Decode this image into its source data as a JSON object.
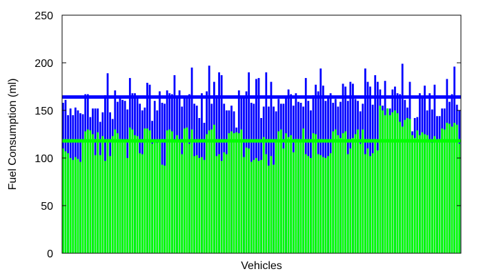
{
  "chart_data": {
    "type": "bar",
    "xlabel": "Vehicles",
    "ylabel": "Fuel Consumption (ml)",
    "ylim": [
      0,
      250
    ],
    "yticks": [
      0,
      50,
      100,
      150,
      200,
      250
    ],
    "grid": false,
    "legend": "none",
    "reference_lines": [
      {
        "value": 164,
        "color": "#0000ff"
      },
      {
        "value": 118,
        "color": "#00ff00"
      }
    ],
    "series": [
      {
        "color": "#0000ff",
        "values": [
          158,
          161,
          145,
          152,
          145,
          153,
          150,
          147,
          146,
          167,
          167,
          143,
          152,
          152,
          152,
          138,
          148,
          166,
          189,
          148,
          141,
          171,
          159,
          163,
          161,
          160,
          151,
          184,
          168,
          168,
          165,
          157,
          150,
          153,
          179,
          177,
          139,
          160,
          150,
          170,
          158,
          157,
          171,
          168,
          167,
          187,
          163,
          171,
          154,
          165,
          164,
          167,
          195,
          157,
          155,
          142,
          168,
          137,
          170,
          197,
          157,
          180,
          166,
          190,
          187,
          157,
          150,
          150,
          155,
          149,
          132,
          171,
          163,
          165,
          170,
          190,
          158,
          157,
          183,
          184,
          142,
          154,
          190,
          154,
          180,
          154,
          149,
          162,
          157,
          157,
          164,
          172,
          167,
          155,
          168,
          159,
          158,
          154,
          184,
          160,
          150,
          166,
          177,
          170,
          194,
          176,
          160,
          163,
          168,
          158,
          162,
          154,
          159,
          178,
          175,
          160,
          180,
          178,
          162,
          160,
          149,
          157,
          194,
          180,
          175,
          156,
          187,
          180,
          172,
          155,
          181,
          152,
          152,
          172,
          175,
          168,
          167,
          199,
          161,
          153,
          180,
          128,
          142,
          143,
          168,
          163,
          176,
          150,
          168,
          151,
          177,
          144,
          144,
          152,
          152,
          183,
          159,
          167,
          196,
          156,
          150
        ]
      },
      {
        "color": "#00ff00",
        "values": [
          110,
          107,
          105,
          100,
          98,
          101,
          99,
          96,
          118,
          128,
          130,
          129,
          125,
          103,
          127,
          103,
          123,
          97,
          118,
          102,
          123,
          130,
          126,
          120,
          119,
          118,
          100,
          132,
          130,
          124,
          123,
          105,
          104,
          131,
          131,
          129,
          115,
          118,
          116,
          118,
          93,
          92,
          129,
          130,
          128,
          117,
          124,
          117,
          104,
          131,
          132,
          115,
          130,
          102,
          103,
          100,
          101,
          98,
          125,
          129,
          130,
          135,
          102,
          104,
          97,
          106,
          104,
          126,
          128,
          126,
          127,
          126,
          130,
          101,
          111,
          110,
          96,
          98,
          100,
          97,
          98,
          122,
          104,
          92,
          102,
          93,
          119,
          128,
          130,
          110,
          126,
          122,
          124,
          106,
          120,
          120,
          119,
          131,
          104,
          102,
          100,
          126,
          125,
          104,
          103,
          101,
          100,
          102,
          105,
          128,
          130,
          124,
          121,
          126,
          128,
          104,
          110,
          121,
          125,
          130,
          115,
          130,
          104,
          110,
          102,
          105,
          120,
          108,
          155,
          150,
          145,
          152,
          145,
          148,
          150,
          147,
          138,
          133,
          140,
          142,
          141,
          124,
          121,
          129,
          124,
          127,
          125,
          124,
          118,
          116,
          123,
          117,
          120,
          131,
          130,
          137,
          136,
          133,
          137,
          135,
          115
        ]
      }
    ]
  }
}
